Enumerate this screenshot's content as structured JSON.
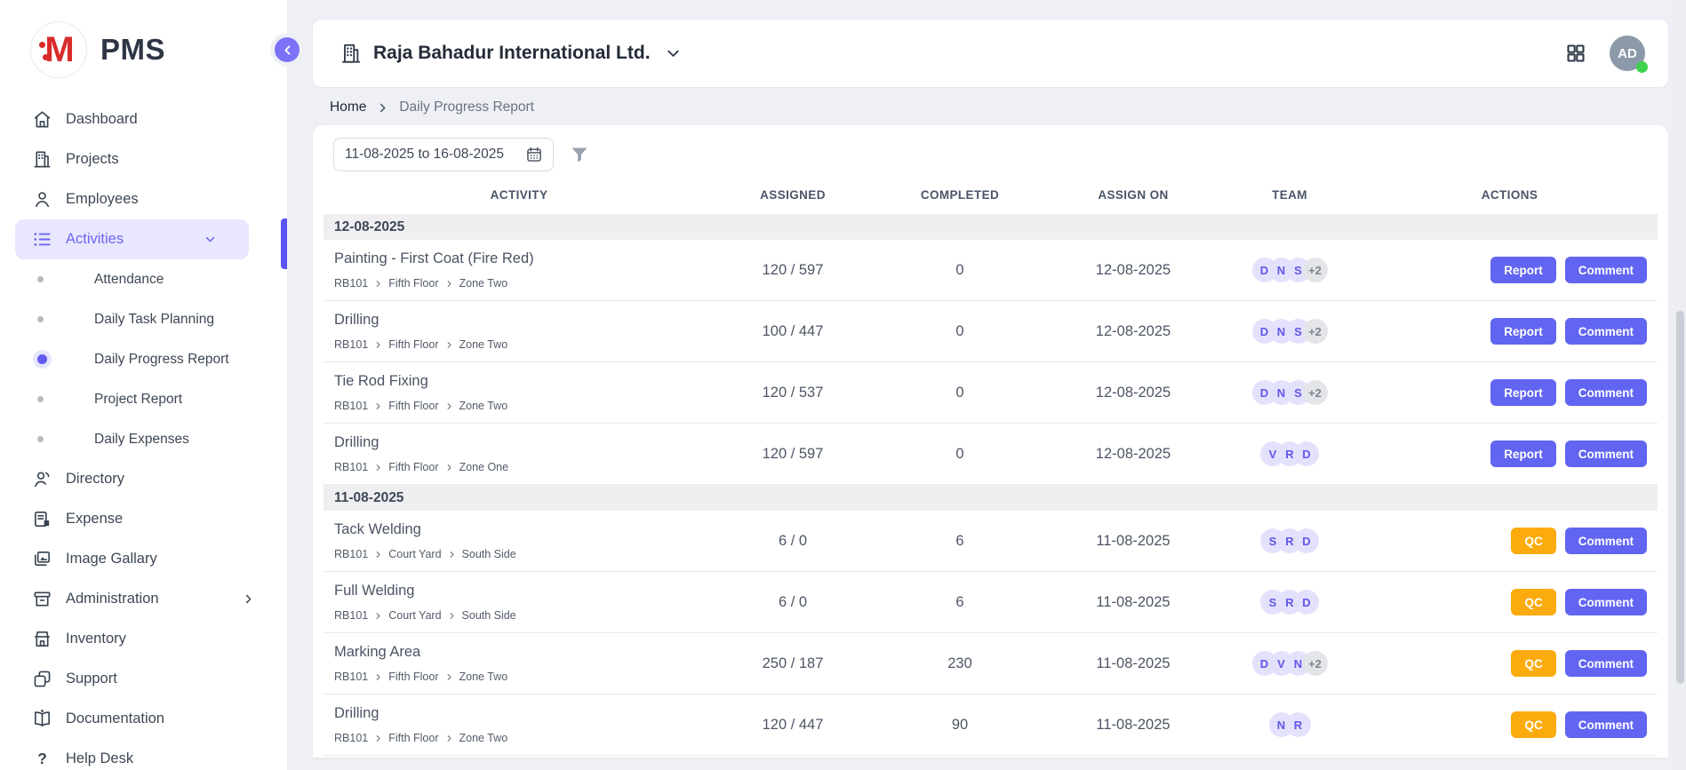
{
  "app": {
    "logo_letter": "M",
    "logo_text": "PMS"
  },
  "sidebar": {
    "items": [
      {
        "label": "Dashboard",
        "icon": "home",
        "type": "item"
      },
      {
        "label": "Projects",
        "icon": "building",
        "type": "item"
      },
      {
        "label": "Employees",
        "icon": "user",
        "type": "item"
      },
      {
        "label": "Activities",
        "icon": "list",
        "type": "item",
        "active": true,
        "chevron": "down"
      },
      {
        "label": "Attendance",
        "type": "sub"
      },
      {
        "label": "Daily Task Planning",
        "type": "sub"
      },
      {
        "label": "Daily Progress Report",
        "type": "sub",
        "active": true
      },
      {
        "label": "Project Report",
        "type": "sub"
      },
      {
        "label": "Daily Expenses",
        "type": "sub"
      },
      {
        "label": "Directory",
        "icon": "users",
        "type": "item"
      },
      {
        "label": "Expense",
        "icon": "receipt",
        "type": "item"
      },
      {
        "label": "Image Gallary",
        "icon": "image",
        "type": "item"
      },
      {
        "label": "Administration",
        "icon": "archive",
        "type": "item",
        "chevron": "right"
      },
      {
        "label": "Inventory",
        "icon": "store",
        "type": "item"
      },
      {
        "label": "Support",
        "icon": "copy",
        "type": "item"
      },
      {
        "label": "Documentation",
        "icon": "book",
        "type": "item"
      },
      {
        "label": "Help Desk",
        "icon": "question",
        "type": "item"
      }
    ]
  },
  "header": {
    "company": "Raja Bahadur International Ltd.",
    "avatar_initials": "AD",
    "status": "online"
  },
  "breadcrumb": {
    "home": "Home",
    "current": "Daily Progress Report"
  },
  "filters": {
    "date_range": "11-08-2025 to 16-08-2025"
  },
  "table": {
    "columns": [
      "ACTIVITY",
      "ASSIGNED",
      "COMPLETED",
      "ASSIGN ON",
      "TEAM",
      "ACTIONS"
    ],
    "groups": [
      {
        "date": "12-08-2025",
        "rows": [
          {
            "activity": "Painting - First Coat (Fire Red)",
            "path": [
              "RB101",
              "Fifth Floor",
              "Zone Two"
            ],
            "assigned": "120 / 597",
            "completed": "0",
            "assign_on": "12-08-2025",
            "team": {
              "members": [
                "D",
                "N",
                "S"
              ],
              "extra": "+2"
            },
            "actions": [
              {
                "label": "Report",
                "style": "indigo"
              },
              {
                "label": "Comment",
                "style": "indigo"
              }
            ]
          },
          {
            "activity": "Drilling",
            "path": [
              "RB101",
              "Fifth Floor",
              "Zone Two"
            ],
            "assigned": "100 / 447",
            "completed": "0",
            "assign_on": "12-08-2025",
            "team": {
              "members": [
                "D",
                "N",
                "S"
              ],
              "extra": "+2"
            },
            "actions": [
              {
                "label": "Report",
                "style": "indigo"
              },
              {
                "label": "Comment",
                "style": "indigo"
              }
            ]
          },
          {
            "activity": "Tie Rod Fixing",
            "path": [
              "RB101",
              "Fifth Floor",
              "Zone Two"
            ],
            "assigned": "120 / 537",
            "completed": "0",
            "assign_on": "12-08-2025",
            "team": {
              "members": [
                "D",
                "N",
                "S"
              ],
              "extra": "+2"
            },
            "actions": [
              {
                "label": "Report",
                "style": "indigo"
              },
              {
                "label": "Comment",
                "style": "indigo"
              }
            ]
          },
          {
            "activity": "Drilling",
            "path": [
              "RB101",
              "Fifth Floor",
              "Zone One"
            ],
            "assigned": "120 / 597",
            "completed": "0",
            "assign_on": "12-08-2025",
            "team": {
              "members": [
                "V",
                "R",
                "D"
              ],
              "extra": ""
            },
            "actions": [
              {
                "label": "Report",
                "style": "indigo"
              },
              {
                "label": "Comment",
                "style": "indigo"
              }
            ]
          }
        ]
      },
      {
        "date": "11-08-2025",
        "rows": [
          {
            "activity": "Tack Welding",
            "path": [
              "RB101",
              "Court Yard",
              "South Side"
            ],
            "assigned": "6 / 0",
            "completed": "6",
            "assign_on": "11-08-2025",
            "team": {
              "members": [
                "S",
                "R",
                "D"
              ],
              "extra": ""
            },
            "actions": [
              {
                "label": "QC",
                "style": "amber"
              },
              {
                "label": "Comment",
                "style": "indigo"
              }
            ]
          },
          {
            "activity": "Full Welding",
            "path": [
              "RB101",
              "Court Yard",
              "South Side"
            ],
            "assigned": "6 / 0",
            "completed": "6",
            "assign_on": "11-08-2025",
            "team": {
              "members": [
                "S",
                "R",
                "D"
              ],
              "extra": ""
            },
            "actions": [
              {
                "label": "QC",
                "style": "amber"
              },
              {
                "label": "Comment",
                "style": "indigo"
              }
            ]
          },
          {
            "activity": "Marking Area",
            "path": [
              "RB101",
              "Fifth Floor",
              "Zone Two"
            ],
            "assigned": "250 / 187",
            "completed": "230",
            "assign_on": "11-08-2025",
            "team": {
              "members": [
                "D",
                "V",
                "N"
              ],
              "extra": "+2"
            },
            "actions": [
              {
                "label": "QC",
                "style": "amber"
              },
              {
                "label": "Comment",
                "style": "indigo"
              }
            ]
          },
          {
            "activity": "Drilling",
            "path": [
              "RB101",
              "Fifth Floor",
              "Zone Two"
            ],
            "assigned": "120 / 447",
            "completed": "90",
            "assign_on": "11-08-2025",
            "team": {
              "members": [
                "N",
                "R"
              ],
              "extra": ""
            },
            "actions": [
              {
                "label": "QC",
                "style": "amber"
              },
              {
                "label": "Comment",
                "style": "indigo"
              }
            ]
          }
        ]
      }
    ]
  },
  "colors": {
    "accent": "#6165f1",
    "accent_light": "#e8e7fd",
    "amber": "#fbab0e",
    "logo_red": "#d92b2b",
    "avatar_bg": "#8b99a9",
    "online_green": "#3fd24d",
    "team_badge_bg": "#e4e1fc",
    "team_badge_text": "#5f58e8",
    "group_bar_bg": "#efeff2"
  }
}
